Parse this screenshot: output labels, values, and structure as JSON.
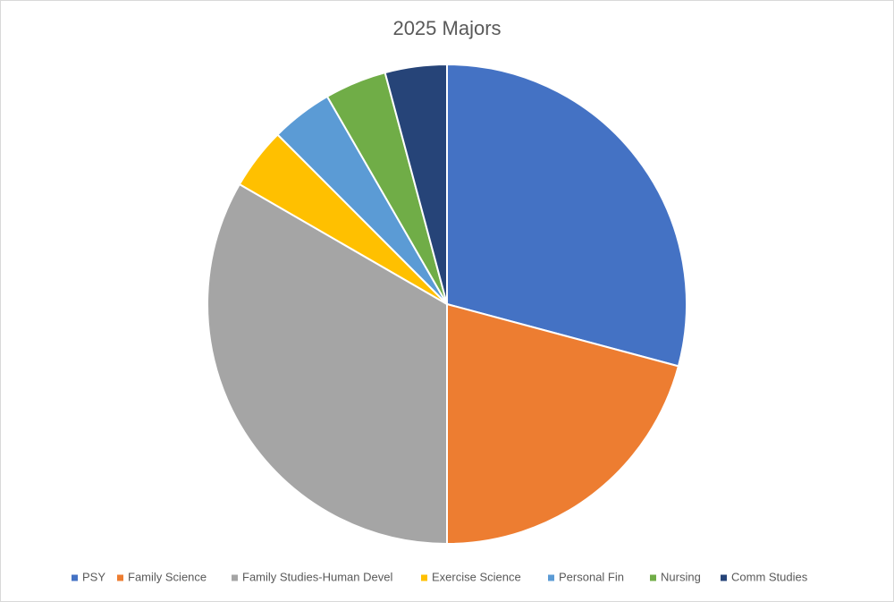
{
  "chart_data": {
    "type": "pie",
    "title": "2025 Majors",
    "categories": [
      "PSY",
      "Family Science",
      "Family Studies-Human Devel",
      "Exercise Science",
      "Personal Fin",
      "Nursing",
      "Comm Studies"
    ],
    "values": [
      7,
      5,
      8,
      1,
      1,
      1,
      1
    ],
    "colors": [
      "#4472c4",
      "#ed7d31",
      "#a5a5a5",
      "#ffc000",
      "#5b9bd5",
      "#70ad47",
      "#264478"
    ],
    "legend": "bottom"
  }
}
